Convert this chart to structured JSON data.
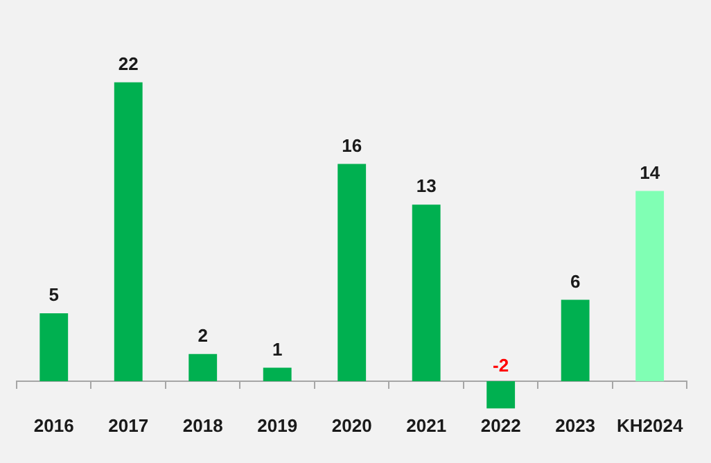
{
  "chart_data": {
    "type": "bar",
    "categories": [
      "2016",
      "2017",
      "2018",
      "2019",
      "2020",
      "2021",
      "2022",
      "2023",
      "KH2024"
    ],
    "values": [
      5,
      22,
      2,
      1,
      16,
      13,
      -2,
      6,
      14
    ],
    "colors": [
      "#00b050",
      "#00b050",
      "#00b050",
      "#00b050",
      "#00b050",
      "#00b050",
      "#00b050",
      "#00b050",
      "#80ffb4"
    ],
    "data_labels": true,
    "grid": false,
    "legend": false
  }
}
